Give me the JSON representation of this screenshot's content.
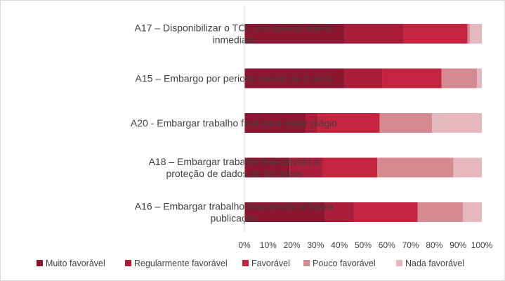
{
  "chart_data": {
    "type": "bar",
    "orientation": "horizontal",
    "stacked": "percent",
    "title": "",
    "xlabel": "",
    "ylabel": "",
    "xlim": [
      0,
      100
    ],
    "x_ticks": [
      "0%",
      "10%",
      "20%",
      "30%",
      "40%",
      "50%",
      "60%",
      "70%",
      "80%",
      "90%",
      "100%"
    ],
    "categories": [
      [
        "A17 – Disponibilizar o TCC em acesso aberto",
        "inmediato"
      ],
      [
        "A15 – Embargo por periodo menor de 3 anos"
      ],
      [
        "A20 - Embargar trabalho final para evitar plágio"
      ],
      [
        "A18 – Embargar trabalho final devido a",
        "proteção de dados de terceiros"
      ],
      [
        "A16 – Embargar trabalho final devido a futura",
        "publicação"
      ]
    ],
    "series": [
      {
        "name": "Muito favorável",
        "color": "#8c1530",
        "values": [
          42,
          42,
          26,
          19,
          34
        ]
      },
      {
        "name": "Regularmente favorável",
        "color": "#a91d3a",
        "values": [
          25,
          16,
          5,
          14,
          12
        ]
      },
      {
        "name": "Favorável",
        "color": "#c4243f",
        "values": [
          27,
          25,
          26,
          23,
          27
        ]
      },
      {
        "name": "Pouco favorável",
        "color": "#d48a90",
        "values": [
          1,
          15,
          22,
          32,
          19
        ]
      },
      {
        "name": "Nada favorável",
        "color": "#e5b8bd",
        "values": [
          5,
          2,
          21,
          12,
          8
        ]
      }
    ],
    "grid": false,
    "legend_position": "bottom"
  }
}
